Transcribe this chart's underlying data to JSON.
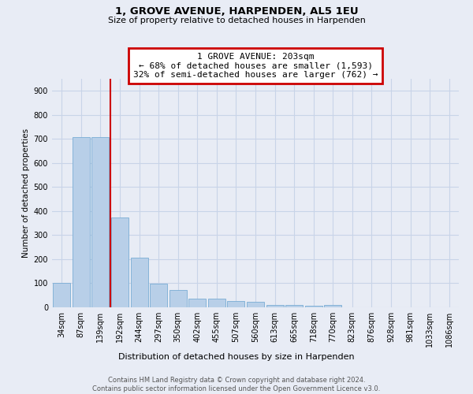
{
  "title": "1, GROVE AVENUE, HARPENDEN, AL5 1EU",
  "subtitle": "Size of property relative to detached houses in Harpenden",
  "xlabel": "Distribution of detached houses by size in Harpenden",
  "ylabel": "Number of detached properties",
  "categories": [
    "34sqm",
    "87sqm",
    "139sqm",
    "192sqm",
    "244sqm",
    "297sqm",
    "350sqm",
    "402sqm",
    "455sqm",
    "507sqm",
    "560sqm",
    "613sqm",
    "665sqm",
    "718sqm",
    "770sqm",
    "823sqm",
    "876sqm",
    "928sqm",
    "981sqm",
    "1033sqm",
    "1086sqm"
  ],
  "values": [
    100,
    707,
    707,
    373,
    205,
    97,
    73,
    35,
    35,
    25,
    22,
    11,
    10,
    8,
    10,
    0,
    0,
    0,
    0,
    0,
    0
  ],
  "bar_color": "#b8cfe8",
  "bar_edge_color": "#7aadd4",
  "annotation_text_line1": "1 GROVE AVENUE: 203sqm",
  "annotation_text_line2": "← 68% of detached houses are smaller (1,593)",
  "annotation_text_line3": "32% of semi-detached houses are larger (762) →",
  "annotation_box_facecolor": "#ffffff",
  "annotation_box_edgecolor": "#cc0000",
  "vline_color": "#cc0000",
  "vline_x_pos": 2.5,
  "ylim": [
    0,
    950
  ],
  "yticks": [
    0,
    100,
    200,
    300,
    400,
    500,
    600,
    700,
    800,
    900
  ],
  "grid_color": "#c8d4e8",
  "bg_color": "#e8ecf5",
  "title_fontsize": 9.5,
  "subtitle_fontsize": 8,
  "xlabel_fontsize": 8,
  "ylabel_fontsize": 7.5,
  "tick_fontsize": 7,
  "ann_fontsize": 8,
  "footnote": "Contains HM Land Registry data © Crown copyright and database right 2024.\nContains public sector information licensed under the Open Government Licence v3.0.",
  "footnote_fontsize": 6
}
